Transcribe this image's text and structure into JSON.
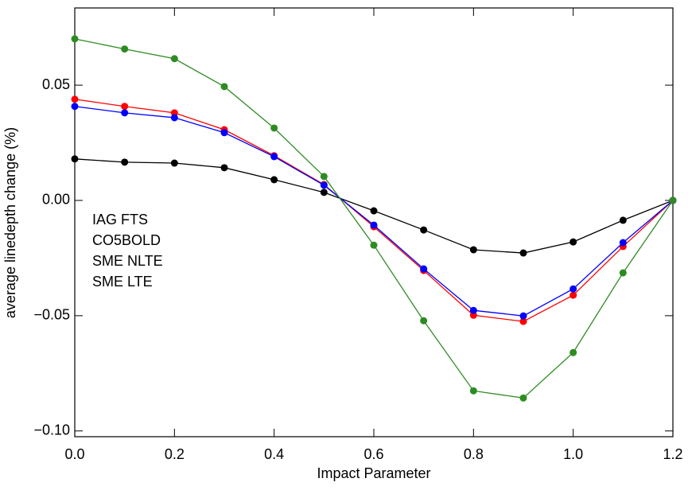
{
  "chart_data": {
    "type": "line",
    "x_label": "Impact Parameter",
    "y_label": "average linedepth change (%)",
    "x": [
      0,
      0.1,
      0.2,
      0.3,
      0.4,
      0.5,
      0.6,
      0.7,
      0.8,
      0.9,
      1.0,
      1.1,
      1.2
    ],
    "series": [
      {
        "name": "IAG FTS",
        "color": "#000000",
        "values": [
          0.018,
          0.0166,
          0.0162,
          0.0142,
          0.009,
          0.0035,
          -0.0045,
          -0.0128,
          -0.0214,
          -0.0228,
          -0.018,
          -0.0086,
          0
        ]
      },
      {
        "name": "CO5BOLD",
        "color": "#ff0000",
        "values": [
          0.0439,
          0.0408,
          0.038,
          0.0307,
          0.0194,
          0.0069,
          -0.0114,
          -0.0304,
          -0.0498,
          -0.0525,
          -0.0411,
          -0.02,
          0
        ]
      },
      {
        "name": "SME NLTE",
        "color": "#0000ff",
        "values": [
          0.0408,
          0.038,
          0.0359,
          0.0294,
          0.019,
          0.0066,
          -0.0107,
          -0.0297,
          -0.0477,
          -0.0501,
          -0.0384,
          -0.0183,
          0
        ]
      },
      {
        "name": "SME LTE",
        "color": "#2e8b22",
        "values": [
          0.0701,
          0.0657,
          0.0615,
          0.0494,
          0.0314,
          0.0104,
          -0.0194,
          -0.0522,
          -0.0826,
          -0.0857,
          -0.066,
          -0.0314,
          0
        ]
      }
    ],
    "xlim": [
      0,
      1.2
    ],
    "ylim": [
      -0.1025,
      0.0835
    ],
    "xticks": [
      {
        "value": 0,
        "label": "0.0"
      },
      0.2,
      0.4,
      0.6,
      0.8,
      {
        "value": 1.0,
        "label": "1.0"
      },
      1.2
    ],
    "yticks": [
      {
        "value": -0.1,
        "label": "−0.10"
      },
      {
        "value": -0.05,
        "label": "−0.05"
      },
      {
        "value": 0,
        "label": "0.00"
      },
      0.05
    ],
    "legend": "left"
  }
}
